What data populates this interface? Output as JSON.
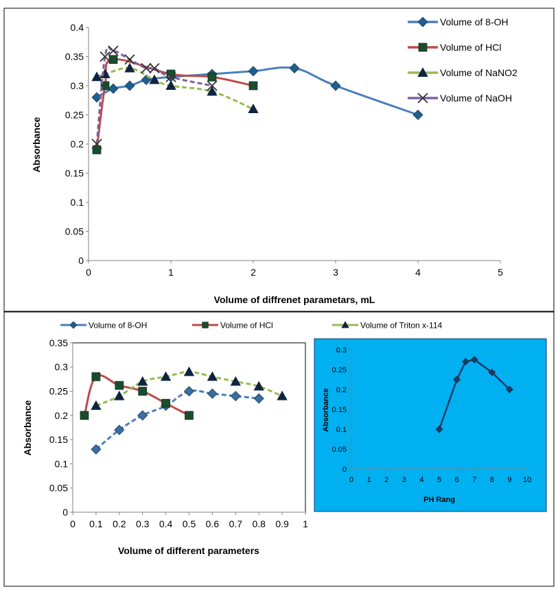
{
  "chart_data": [
    {
      "type": "line",
      "xlabel": "Volume of diffrenet parametars, mL",
      "ylabel": "Absorbance",
      "xlim": [
        0,
        5
      ],
      "ylim": [
        0,
        0.4
      ],
      "xticks": [
        "0",
        "1",
        "2",
        "3",
        "4",
        "5"
      ],
      "yticks": [
        "0",
        "0.05",
        "0.1",
        "0.15",
        "0.2",
        "0.25",
        "0.3",
        "0.35",
        "0.4"
      ],
      "legend_position": "top-right",
      "grid": false,
      "series": [
        {
          "name": "Volume of 8-OH",
          "color": "#4a7ebb",
          "marker": "diamond",
          "dashed": false,
          "x": [
            0.1,
            0.3,
            0.5,
            0.7,
            1.0,
            1.5,
            2.0,
            2.5,
            3.0,
            4.0
          ],
          "y": [
            0.28,
            0.295,
            0.3,
            0.31,
            0.315,
            0.32,
            0.325,
            0.33,
            0.3,
            0.25
          ]
        },
        {
          "name": "Volume of HCl",
          "color": "#be4b48",
          "marker": "square",
          "dashed": false,
          "x": [
            0.1,
            0.2,
            0.3,
            1.0,
            1.5,
            2.0
          ],
          "y": [
            0.19,
            0.3,
            0.345,
            0.32,
            0.315,
            0.3
          ]
        },
        {
          "name": "Volume of NaNO2",
          "color": "#98b954",
          "marker": "triangle",
          "dashed": true,
          "x": [
            0.1,
            0.2,
            0.5,
            0.8,
            1.0,
            1.5,
            2.0
          ],
          "y": [
            0.315,
            0.32,
            0.33,
            0.31,
            0.3,
            0.29,
            0.26
          ]
        },
        {
          "name": "Volume of NaOH",
          "color": "#7d60a0",
          "marker": "x",
          "dashed": true,
          "x": [
            0.1,
            0.2,
            0.3,
            0.5,
            0.7,
            0.8,
            1.0,
            1.5
          ],
          "y": [
            0.2,
            0.35,
            0.36,
            0.345,
            0.33,
            0.33,
            0.315,
            0.3
          ]
        }
      ]
    },
    {
      "type": "line",
      "xlabel": "Volume of different parameters",
      "ylabel": "Absorbance",
      "xlim": [
        0,
        1
      ],
      "ylim": [
        0,
        0.35
      ],
      "xticks": [
        "0",
        "0.1",
        "0.2",
        "0.3",
        "0.4",
        "0.5",
        "0.6",
        "0.7",
        "0.8",
        "0.9",
        "1"
      ],
      "yticks": [
        "0",
        "0.05",
        "0.1",
        "0.15",
        "0.2",
        "0.25",
        "0.3",
        "0.35"
      ],
      "legend_position": "top",
      "grid": false,
      "series": [
        {
          "name": "Volume of 8-OH",
          "color": "#4a7ebb",
          "marker": "diamond",
          "dashed": true,
          "x": [
            0.1,
            0.2,
            0.3,
            0.4,
            0.5,
            0.6,
            0.7,
            0.8
          ],
          "y": [
            0.13,
            0.17,
            0.2,
            0.22,
            0.25,
            0.245,
            0.24,
            0.235
          ]
        },
        {
          "name": "Volume of  HCl",
          "color": "#be4b48",
          "marker": "square",
          "dashed": false,
          "x": [
            0.05,
            0.1,
            0.2,
            0.3,
            0.4,
            0.5
          ],
          "y": [
            0.2,
            0.28,
            0.262,
            0.25,
            0.225,
            0.2
          ]
        },
        {
          "name": "Volume of Triton x-114",
          "color": "#98b954",
          "marker": "triangle",
          "dashed": true,
          "x": [
            0.1,
            0.2,
            0.3,
            0.4,
            0.5,
            0.6,
            0.7,
            0.8,
            0.9
          ],
          "y": [
            0.22,
            0.24,
            0.27,
            0.28,
            0.29,
            0.28,
            0.27,
            0.26,
            0.24
          ]
        }
      ]
    },
    {
      "type": "line",
      "xlabel": "PH Rang",
      "ylabel": "Absorbance",
      "xlim": [
        0,
        10
      ],
      "ylim": [
        0,
        0.3
      ],
      "xticks": [
        "0",
        "1",
        "2",
        "3",
        "4",
        "5",
        "6",
        "7",
        "8",
        "9",
        "10"
      ],
      "yticks": [
        "0",
        "0.05",
        "0.1",
        "0.15",
        "0.2",
        "0.25",
        "0.3"
      ],
      "background": "#00b0f0",
      "grid": false,
      "series": [
        {
          "color": "#1f3a5f",
          "marker": "diamond",
          "dashed": false,
          "x": [
            5,
            6,
            6.5,
            7,
            8,
            9
          ],
          "y": [
            0.1,
            0.225,
            0.27,
            0.275,
            0.243,
            0.2
          ]
        }
      ]
    }
  ]
}
